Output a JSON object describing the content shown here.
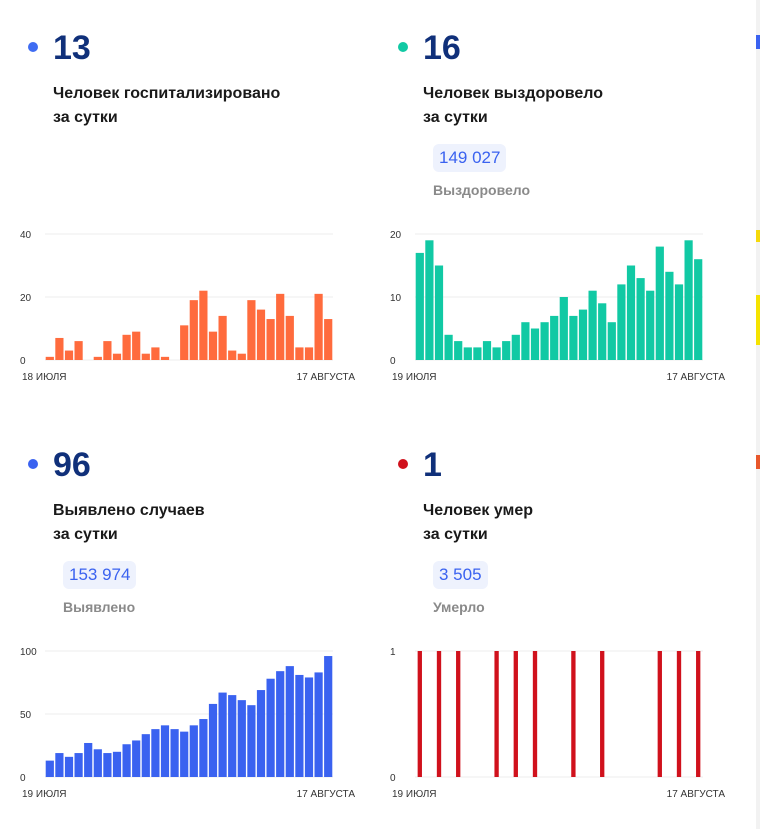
{
  "panels": [
    {
      "key": "hosp",
      "value": "13",
      "label_line1": "Человек госпитализировано",
      "label_line2": "за сутки",
      "total": null,
      "total_label": null,
      "color": "#ff6b3d",
      "dot_color": "#3f6cf2"
    },
    {
      "key": "recov",
      "value": "16",
      "label_line1": "Человек выздоровело",
      "label_line2": "за сутки",
      "total": "149 027",
      "total_label": "Выздоровело",
      "color": "#11c9a4",
      "dot_color": "#11c9a4"
    },
    {
      "key": "cases",
      "value": "96",
      "label_line1": "Выявлено случаев",
      "label_line2": "за сутки",
      "total": "153 974",
      "total_label": "Выявлено",
      "color": "#3a62f0",
      "dot_color": "#3a62f0"
    },
    {
      "key": "deaths",
      "value": "1",
      "label_line1": "Человек умер",
      "label_line2": "за сутки",
      "total": "3 505",
      "total_label": "Умерло",
      "color": "#d0111c",
      "dot_color": "#d0111c"
    }
  ],
  "chart_data": [
    {
      "type": "bar",
      "ylim": [
        0,
        40
      ],
      "yticks": [
        0,
        20,
        40
      ],
      "x_start_label": "18 ИЮЛЯ",
      "x_end_label": "17 АВГУСТА",
      "values": [
        1,
        7,
        3,
        6,
        0,
        1,
        6,
        2,
        8,
        9,
        2,
        4,
        1,
        0,
        11,
        19,
        22,
        9,
        14,
        3,
        2,
        19,
        16,
        13,
        21,
        14,
        4,
        4,
        21,
        13
      ],
      "color": "#ff6b3d"
    },
    {
      "type": "bar",
      "ylim": [
        0,
        20
      ],
      "yticks": [
        0,
        10,
        20
      ],
      "x_start_label": "19 ИЮЛЯ",
      "x_end_label": "17 АВГУСТА",
      "values": [
        17,
        19,
        15,
        4,
        3,
        2,
        2,
        3,
        2,
        3,
        4,
        6,
        5,
        6,
        7,
        10,
        7,
        8,
        11,
        9,
        6,
        12,
        15,
        13,
        11,
        18,
        14,
        12,
        19,
        16
      ],
      "color": "#11c9a4"
    },
    {
      "type": "bar",
      "ylim": [
        0,
        100
      ],
      "yticks": [
        0,
        50,
        100
      ],
      "x_start_label": "19 ИЮЛЯ",
      "x_end_label": "17 АВГУСТА",
      "values": [
        13,
        19,
        16,
        19,
        27,
        22,
        19,
        20,
        26,
        29,
        34,
        38,
        41,
        38,
        36,
        41,
        46,
        58,
        67,
        65,
        61,
        57,
        69,
        78,
        84,
        88,
        81,
        79,
        83,
        96
      ],
      "color": "#3a62f0"
    },
    {
      "type": "bar",
      "ylim": [
        0,
        1
      ],
      "yticks": [
        0,
        1
      ],
      "x_start_label": "19 ИЮЛЯ",
      "x_end_label": "17 АВГУСТА",
      "values": [
        1,
        0,
        1,
        0,
        1,
        0,
        0,
        0,
        1,
        0,
        1,
        0,
        1,
        0,
        0,
        0,
        1,
        0,
        0,
        1,
        0,
        0,
        0,
        0,
        0,
        1,
        0,
        1,
        0,
        1
      ],
      "color": "#d0111c"
    }
  ]
}
